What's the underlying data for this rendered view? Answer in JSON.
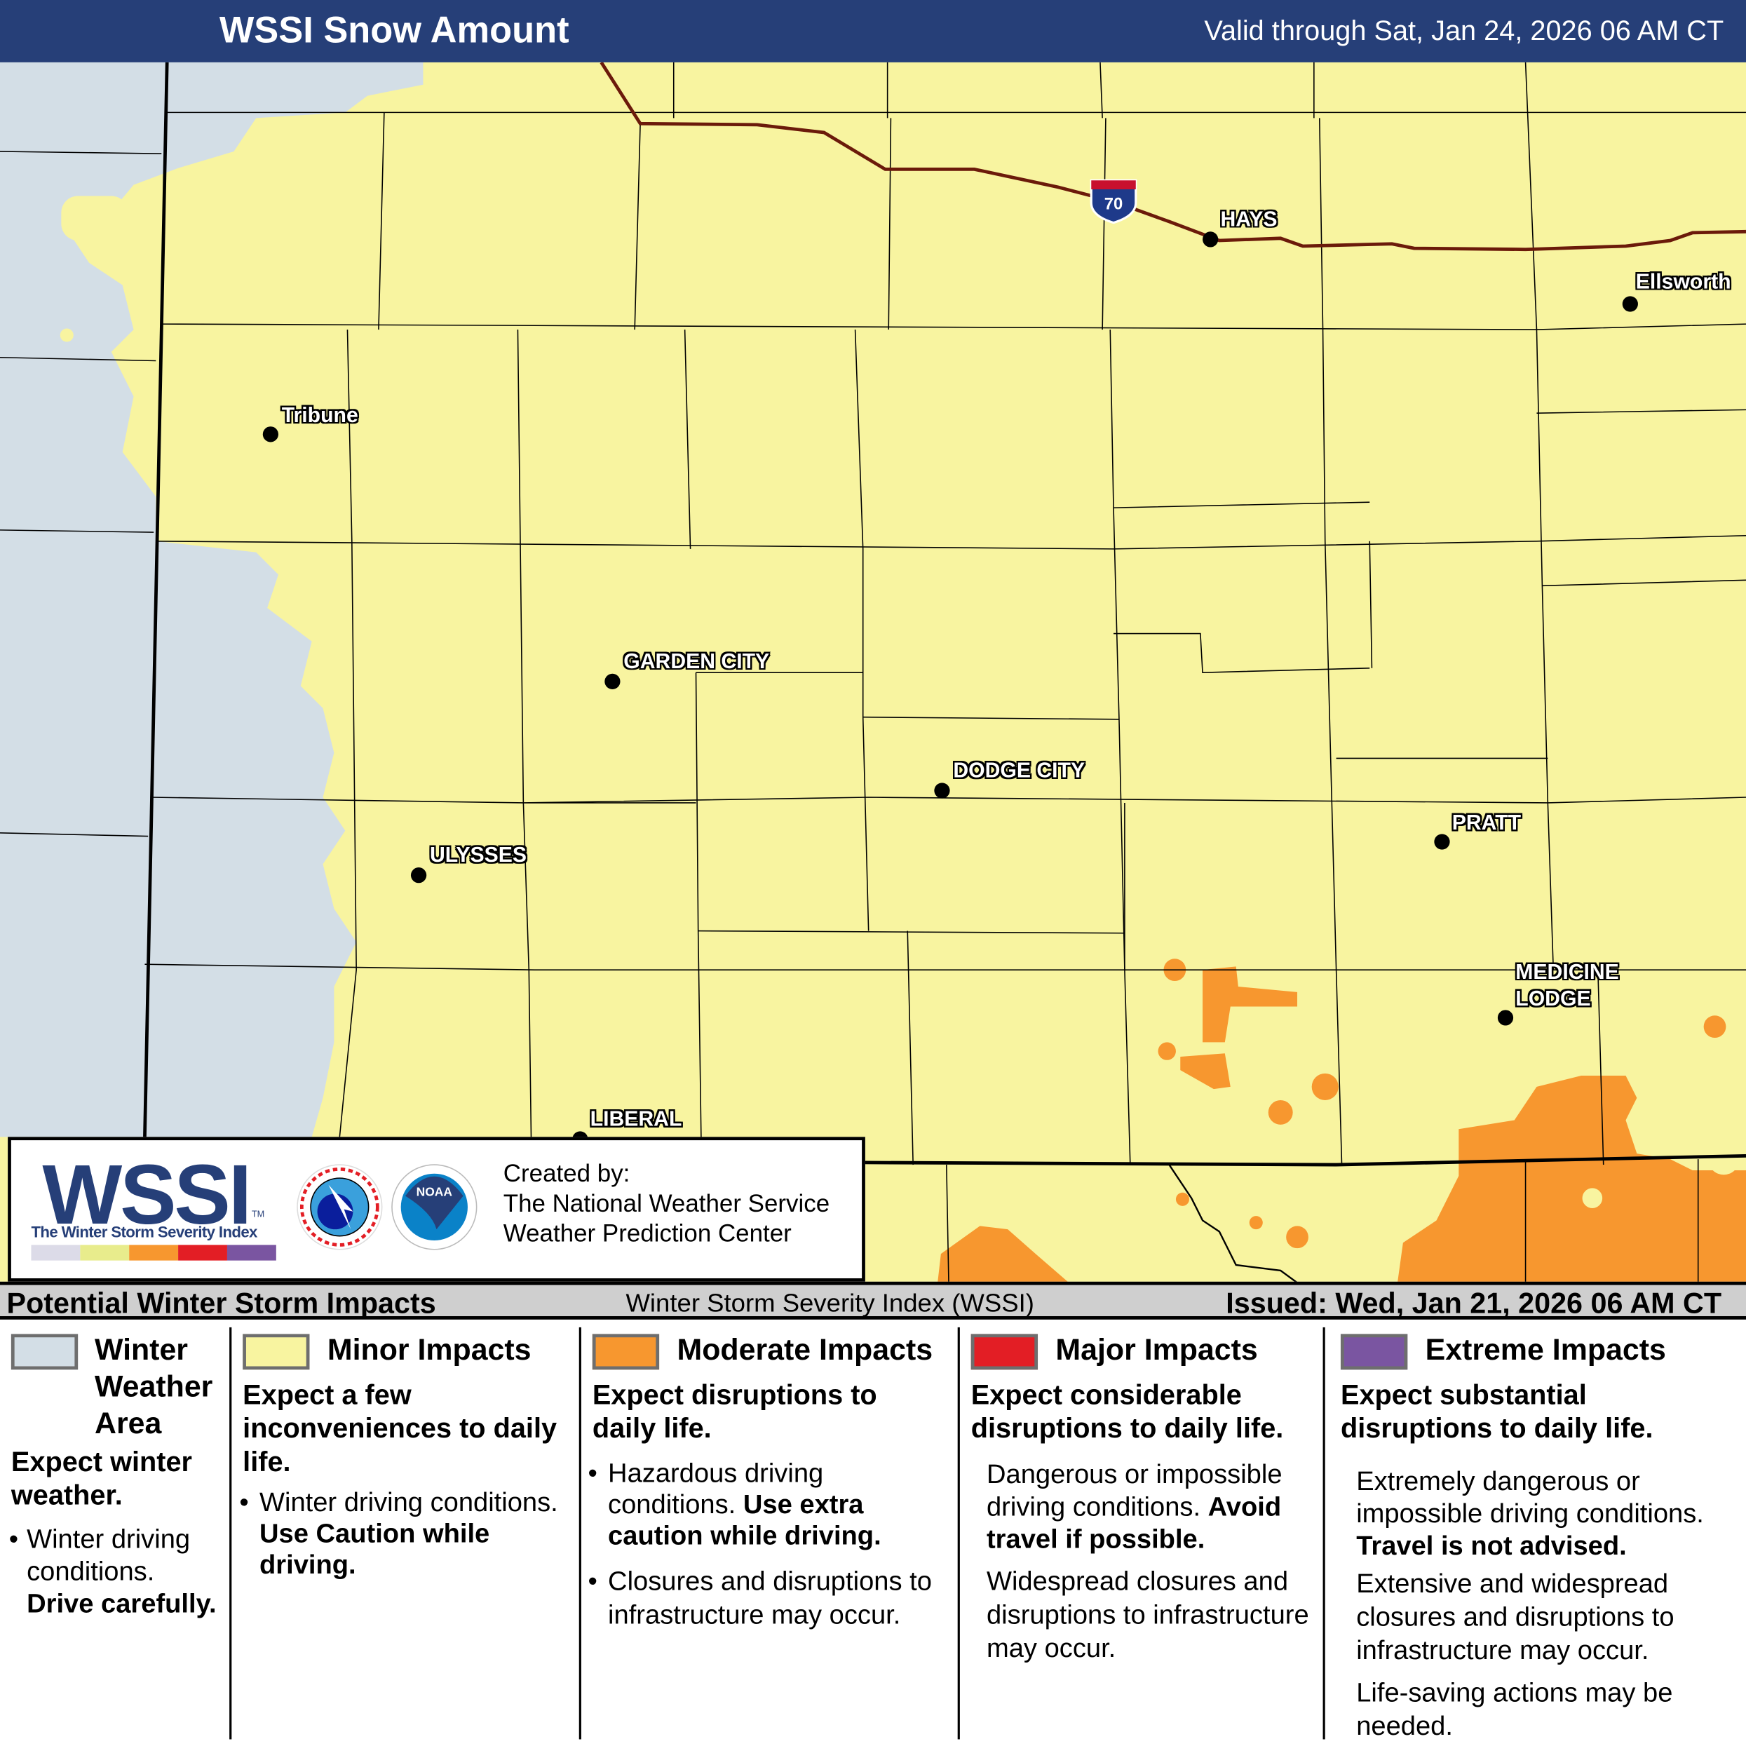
{
  "header": {
    "title": "WSSI Snow Amount",
    "valid": "Valid through Sat, Jan 24, 2026 06 AM CT"
  },
  "map": {
    "highway_shield": "70",
    "cities": [
      "HAYS",
      "Ellsworth",
      "Tribune",
      "GARDEN CITY",
      "DODGE CITY",
      "PRATT",
      "ULYSSES",
      "MEDICINE LODGE",
      "LIBERAL"
    ],
    "colors": {
      "winter_area": "#d3dee6",
      "minor": "#f8f4a0",
      "moderate": "#f7972f",
      "interstate": "#6b1a0a"
    }
  },
  "logo": {
    "wssi": "WSSI",
    "tm": "TM",
    "subtitle": "The Winter Storm Severity Index",
    "created_by": "Created by:",
    "org1": "The National Weather Service",
    "org2": "Weather Prediction Center",
    "nws_seal": "NATIONAL WEATHER SERVICE",
    "noaa_seal": "NOAA"
  },
  "bar": {
    "left": "Potential Winter Storm Impacts",
    "center": "Winter Storm Severity Index (WSSI)",
    "right": "Issued: Wed, Jan 21, 2026 06 AM CT"
  },
  "legend": [
    {
      "label": "Winter Weather Area",
      "color": "#d3dee6",
      "headline": "Expect winter weather.",
      "bullet1": "Winter driving conditions.",
      "bullet1_bold": "Drive carefully."
    },
    {
      "label": "Minor Impacts",
      "color": "#f8f4a0",
      "headline": "Expect a few inconveniences to daily life.",
      "bullet1": "Winter driving conditions.",
      "bullet1_bold": "Use Caution while driving."
    },
    {
      "label": "Moderate Impacts",
      "color": "#f7972f",
      "headline": "Expect disruptions to daily life.",
      "bullet1": "Hazardous driving conditions.",
      "bullet1_bold": "Use extra caution while driving.",
      "bullet2": "Closures and disruptions to infrastructure may occur."
    },
    {
      "label": "Major Impacts",
      "color": "#e31e25",
      "headline": "Expect considerable disruptions to daily life.",
      "p1": "Dangerous or impossible driving conditions.",
      "p1_bold": "Avoid travel if possible.",
      "p2": "Widespread closures and disruptions to infrastructure may occur."
    },
    {
      "label": "Extreme Impacts",
      "color": "#7a55a1",
      "headline": "Expect substantial disruptions to daily life.",
      "p1": "Extremely dangerous or impossible driving conditions.",
      "p1_bold": "Travel is not advised.",
      "p2": "Extensive and widespread closures and disruptions to infrastructure may occur.",
      "p3": "Life-saving actions may be needed."
    }
  ]
}
